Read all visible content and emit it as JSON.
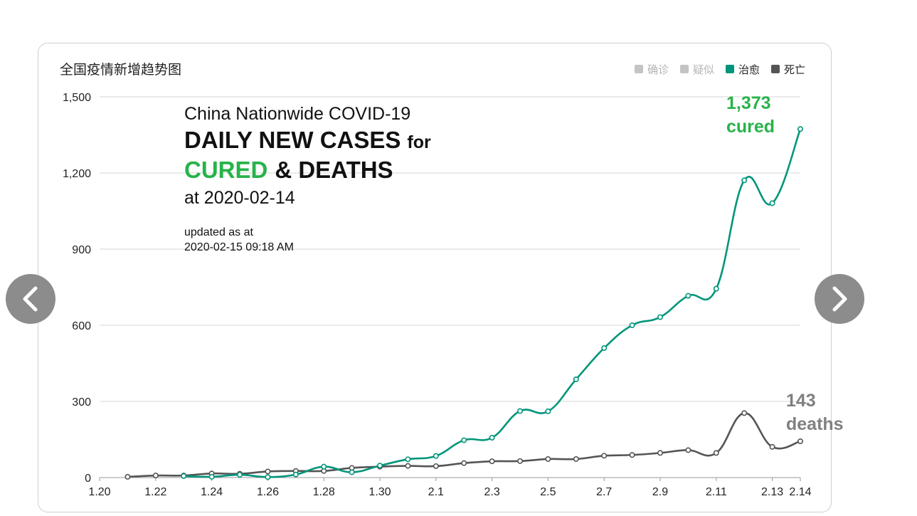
{
  "nav": {
    "prev_icon": "chevron-left-icon",
    "next_icon": "chevron-right-icon"
  },
  "chart_data": {
    "type": "line",
    "title": "全国疫情新增趋势图",
    "legend": {
      "placement": "top-right",
      "items": [
        {
          "label": "确诊",
          "color": "#c4c4c4",
          "active": false
        },
        {
          "label": "疑似",
          "color": "#c4c4c4",
          "active": false
        },
        {
          "label": "治愈",
          "color": "#00957a",
          "active": true
        },
        {
          "label": "死亡",
          "color": "#555555",
          "active": true
        }
      ]
    },
    "ylim": [
      0,
      1500
    ],
    "yticks": [
      "1,500",
      "1,200",
      "900",
      "600",
      "300",
      "0"
    ],
    "xtick_labels": [
      "1.20",
      "1.22",
      "1.24",
      "1.26",
      "1.28",
      "1.30",
      "2.1",
      "2.3",
      "2.5",
      "2.7",
      "2.9",
      "2.11",
      "2.13",
      "2.14"
    ],
    "grid": true,
    "x": [
      "1.21",
      "1.22",
      "1.23",
      "1.24",
      "1.25",
      "1.26",
      "1.27",
      "1.28",
      "1.29",
      "1.30",
      "1.31",
      "2.1",
      "2.2",
      "2.3",
      "2.4",
      "2.5",
      "2.6",
      "2.7",
      "2.8",
      "2.9",
      "2.10",
      "2.11",
      "2.12",
      "2.13",
      "2.14"
    ],
    "series": [
      {
        "name": "治愈",
        "color": "#00957a",
        "values": [
          null,
          null,
          6,
          3,
          11,
          2,
          12,
          43,
          21,
          47,
          72,
          85,
          147,
          157,
          262,
          261,
          387,
          510,
          600,
          632,
          716,
          744,
          1171,
          1081,
          1373
        ]
      },
      {
        "name": "死亡",
        "color": "#555555",
        "values": [
          3,
          8,
          8,
          16,
          15,
          24,
          26,
          26,
          38,
          43,
          46,
          45,
          57,
          64,
          65,
          73,
          73,
          86,
          89,
          97,
          108,
          97,
          254,
          121,
          143
        ]
      }
    ],
    "annotations": {
      "headline_line1": "China Nationwide COVID-19",
      "headline_line2": "DAILY NEW CASES",
      "headline_for": "for",
      "headline_cured": "CURED",
      "headline_deaths": "& DEATHS",
      "headline_date": "at 2020-02-14",
      "updated_label": "updated as at",
      "updated_time": "2020-02-15 09:18 AM",
      "cured_value": "1,373",
      "cured_label": "cured",
      "deaths_value": "143",
      "deaths_label": "deaths",
      "cured_color": "#27b34a",
      "deaths_color": "#808080"
    }
  }
}
